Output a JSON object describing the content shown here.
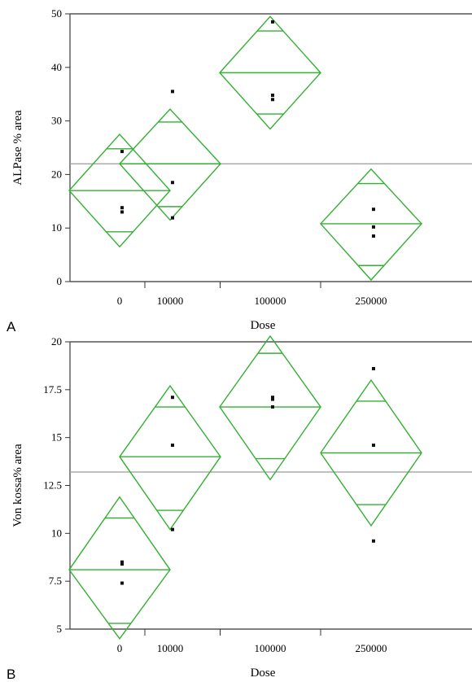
{
  "chart_data": [
    {
      "type": "scatter",
      "panel_label": "A",
      "xlabel": "Dose",
      "ylabel": "ALPase % area",
      "categories": [
        "0",
        "10000",
        "100000",
        "250000"
      ],
      "ylim": [
        0,
        50
      ],
      "yticks": [
        0,
        10,
        20,
        30,
        40,
        50
      ],
      "grand_mean": 22,
      "groups": [
        {
          "category": "0",
          "mean": 17,
          "diamond_top": 27.5,
          "diamond_bottom": 6.5,
          "upper_line": 24.8,
          "lower_line": 9.3,
          "points": [
            24.3,
            13.8,
            13.0
          ]
        },
        {
          "category": "10000",
          "mean": 22,
          "diamond_top": 32.2,
          "diamond_bottom": 11.5,
          "upper_line": 29.8,
          "lower_line": 14.0,
          "points": [
            35.5,
            18.5,
            11.9
          ]
        },
        {
          "category": "100000",
          "mean": 39,
          "diamond_top": 49.5,
          "diamond_bottom": 28.5,
          "upper_line": 46.8,
          "lower_line": 31.3,
          "points": [
            48.5,
            34.8,
            34.0
          ]
        },
        {
          "category": "250000",
          "mean": 10.8,
          "diamond_top": 21.0,
          "diamond_bottom": 0.3,
          "upper_line": 18.3,
          "lower_line": 3.0,
          "points": [
            13.5,
            10.2,
            8.5
          ]
        }
      ]
    },
    {
      "type": "scatter",
      "panel_label": "B",
      "xlabel": "Dose",
      "ylabel": "Von kossa% area",
      "categories": [
        "0",
        "10000",
        "100000",
        "250000"
      ],
      "ylim": [
        5,
        20
      ],
      "yticks": [
        5,
        7.5,
        10,
        12.5,
        15,
        17.5,
        20
      ],
      "grand_mean": 13.2,
      "groups": [
        {
          "category": "0",
          "mean": 8.1,
          "diamond_top": 11.9,
          "diamond_bottom": 4.5,
          "upper_line": 10.8,
          "lower_line": 5.3,
          "points": [
            8.5,
            8.4,
            7.4
          ]
        },
        {
          "category": "10000",
          "mean": 14.0,
          "diamond_top": 17.7,
          "diamond_bottom": 10.2,
          "upper_line": 16.6,
          "lower_line": 11.2,
          "points": [
            17.1,
            14.6,
            10.2
          ]
        },
        {
          "category": "100000",
          "mean": 16.6,
          "diamond_top": 20.3,
          "diamond_bottom": 12.8,
          "upper_line": 19.4,
          "lower_line": 13.9,
          "points": [
            17.1,
            16.6,
            17.0
          ]
        },
        {
          "category": "250000",
          "mean": 14.2,
          "diamond_top": 18.0,
          "diamond_bottom": 10.4,
          "upper_line": 16.9,
          "lower_line": 11.5,
          "points": [
            18.6,
            14.6,
            9.6
          ]
        }
      ]
    }
  ]
}
